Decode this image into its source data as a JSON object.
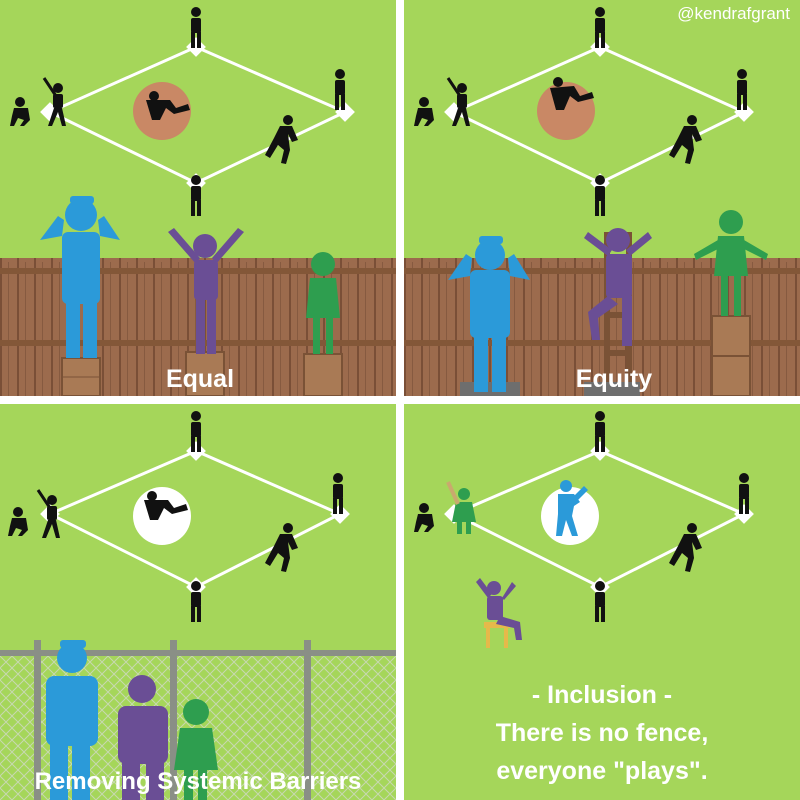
{
  "panels": {
    "equal": {
      "label": "Equal"
    },
    "equity": {
      "label": "Equity",
      "handle": "@kendrafgrant"
    },
    "systemic": {
      "label": "Removing Systemic Barriers"
    },
    "inclusion": {
      "line1": "- Inclusion -",
      "line2": "There is no fence,",
      "line3": "everyone \"plays\"."
    }
  },
  "colors": {
    "grass": "#a5d65a",
    "fence": "#9c6b4d",
    "mound": "#c98865",
    "tall": "#2b9ad9",
    "medium": "#6a4e95",
    "short": "#2e9e4f",
    "player": "#111111",
    "chainlink": "#8a8f86"
  }
}
